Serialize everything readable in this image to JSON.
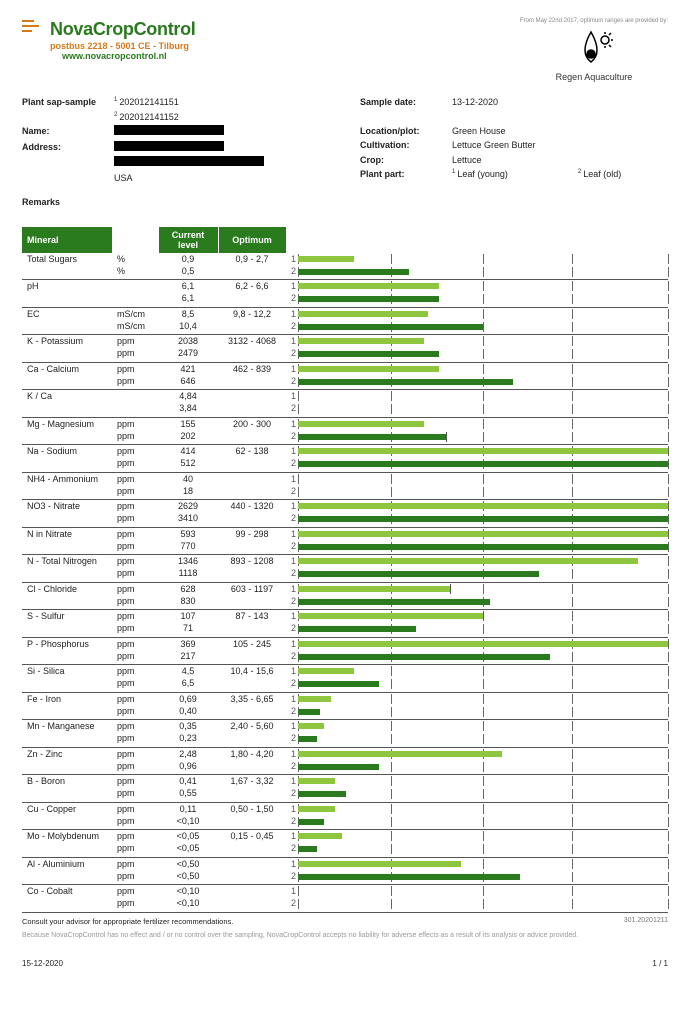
{
  "brand": {
    "name": "NovaCropControl",
    "address": "postbus 2218  -  5001 CE  -  Tilburg",
    "web": "www.novacropcontrol.nl"
  },
  "provider": {
    "label": "From May 22nd 2017, optimum ranges are provided by:",
    "name": "Regen Aquaculture"
  },
  "meta_left": {
    "sample_label": "Plant sap-sample",
    "sample1": "202012141151",
    "sample2": "202012141152",
    "name_label": "Name:",
    "addr_label": "Address:",
    "country": "USA",
    "remarks_label": "Remarks"
  },
  "meta_right": {
    "date_label": "Sample date:",
    "date_val": "13-12-2020",
    "loc_label": "Location/plot:",
    "loc_val": "Green House",
    "cult_label": "Cultivation:",
    "cult_val": "Lettuce Green Butter",
    "crop_label": "Crop:",
    "crop_val": "Lettuce",
    "part_label": "Plant part:",
    "part1": "Leaf (young)",
    "part2": "Leaf (old)"
  },
  "table": {
    "headers": {
      "mineral": "Mineral",
      "current": "Current level",
      "optimum": "Optimum"
    },
    "colors": {
      "bar1": "#8fc63f",
      "bar2": "#2a7a1e",
      "header_bg": "#2a7a1e",
      "tick": "#666666"
    },
    "bar_ticks": [
      0,
      25,
      50,
      74,
      100
    ],
    "rows": [
      {
        "name": "Total Sugars",
        "unit": "%",
        "v1": "0,9",
        "v2": "0,5",
        "opt": "0,9 - 2,7",
        "b1": 15,
        "b2": 30
      },
      {
        "name": "pH",
        "unit": "",
        "v1": "6,1",
        "v2": "6,1",
        "opt": "6,2 - 6,6",
        "b1": 38,
        "b2": 38
      },
      {
        "name": "EC",
        "unit": "mS/cm",
        "v1": "8,5",
        "v2": "10,4",
        "opt": "9,8 - 12,2",
        "b1": 35,
        "b2": 50
      },
      {
        "name": "K - Potassium",
        "unit": "ppm",
        "v1": "2038",
        "v2": "2479",
        "opt": "3132 - 4068",
        "b1": 34,
        "b2": 38
      },
      {
        "name": "Ca - Calcium",
        "unit": "ppm",
        "v1": "421",
        "v2": "646",
        "opt": "462 - 839",
        "b1": 38,
        "b2": 58
      },
      {
        "name": "K / Ca",
        "unit": "",
        "v1": "4,84",
        "v2": "3,84",
        "opt": "",
        "b1": 0,
        "b2": 0
      },
      {
        "name": "Mg - Magnesium",
        "unit": "ppm",
        "v1": "155",
        "v2": "202",
        "opt": "200 - 300",
        "b1": 34,
        "b2": 40,
        "mark2": true
      },
      {
        "name": "Na - Sodium",
        "unit": "ppm",
        "v1": "414",
        "v2": "512",
        "opt": "62 - 138",
        "b1": 100,
        "b2": 100
      },
      {
        "name": "NH4 - Ammonium",
        "unit": "ppm",
        "v1": "40",
        "v2": "18",
        "opt": "",
        "b1": 0,
        "b2": 0
      },
      {
        "name": "NO3 - Nitrate",
        "unit": "ppm",
        "v1": "2629",
        "v2": "3410",
        "opt": "440 - 1320",
        "b1": 100,
        "b2": 100
      },
      {
        "name": "N in Nitrate",
        "unit": "ppm",
        "v1": "593",
        "v2": "770",
        "opt": "99 - 298",
        "b1": 100,
        "b2": 100
      },
      {
        "name": "N - Total Nitrogen",
        "unit": "ppm",
        "v1": "1346",
        "v2": "1118",
        "opt": "893 - 1208",
        "b1": 92,
        "b2": 65
      },
      {
        "name": "Cl - Chloride",
        "unit": "ppm",
        "v1": "628",
        "v2": "830",
        "opt": "603 - 1197",
        "b1": 41,
        "b2": 52,
        "mark1": true
      },
      {
        "name": "S - Sulfur",
        "unit": "ppm",
        "v1": "107",
        "v2": "71",
        "opt": "87 - 143",
        "b1": 50,
        "b2": 32,
        "mark1": true
      },
      {
        "name": "P - Phosphorus",
        "unit": "ppm",
        "v1": "369",
        "v2": "217",
        "opt": "105 - 245",
        "b1": 100,
        "b2": 68
      },
      {
        "name": "Si - Silica",
        "unit": "ppm",
        "v1": "4,5",
        "v2": "6,5",
        "opt": "10,4 - 15,6",
        "b1": 15,
        "b2": 22
      },
      {
        "name": "Fe - Iron",
        "unit": "ppm",
        "v1": "0,69",
        "v2": "0,40",
        "opt": "3,35 - 6,65",
        "b1": 9,
        "b2": 6
      },
      {
        "name": "Mn - Manganese",
        "unit": "ppm",
        "v1": "0,35",
        "v2": "0,23",
        "opt": "2,40 - 5,60",
        "b1": 7,
        "b2": 5
      },
      {
        "name": "Zn - Zinc",
        "unit": "ppm",
        "v1": "2,48",
        "v2": "0,96",
        "opt": "1,80 - 4,20",
        "b1": 55,
        "b2": 22
      },
      {
        "name": "B - Boron",
        "unit": "ppm",
        "v1": "0,41",
        "v2": "0,55",
        "opt": "1,67 - 3,32",
        "b1": 10,
        "b2": 13
      },
      {
        "name": "Cu - Copper",
        "unit": "ppm",
        "v1": "0,11",
        "v2": "<0,10",
        "opt": "0,50 - 1,50",
        "b1": 10,
        "b2": 7
      },
      {
        "name": "Mo - Molybdenum",
        "unit": "ppm",
        "v1": "<0,05",
        "v2": "<0,05",
        "opt": "0,15 - 0,45",
        "b1": 12,
        "b2": 5
      },
      {
        "name": "Al - Aluminium",
        "unit": "ppm",
        "v1": "<0,50",
        "v2": "<0,50",
        "opt": "",
        "b1": 44,
        "b2": 60
      },
      {
        "name": "Co - Cobalt",
        "unit": "ppm",
        "v1": "<0,10",
        "v2": "<0,10",
        "opt": "",
        "b1": 0,
        "b2": 0
      }
    ]
  },
  "footer": {
    "consult": "Consult your advisor for appropriate fertilizer recommendations.",
    "ref": "301.20201211",
    "disclaimer": "Because NovaCropControl has no effect and / or no control over the sampling, NovaCropControl accepts no liability for adverse effects as a result of its analysis or advice provided.",
    "date": "15-12-2020",
    "page": "1 / 1"
  }
}
